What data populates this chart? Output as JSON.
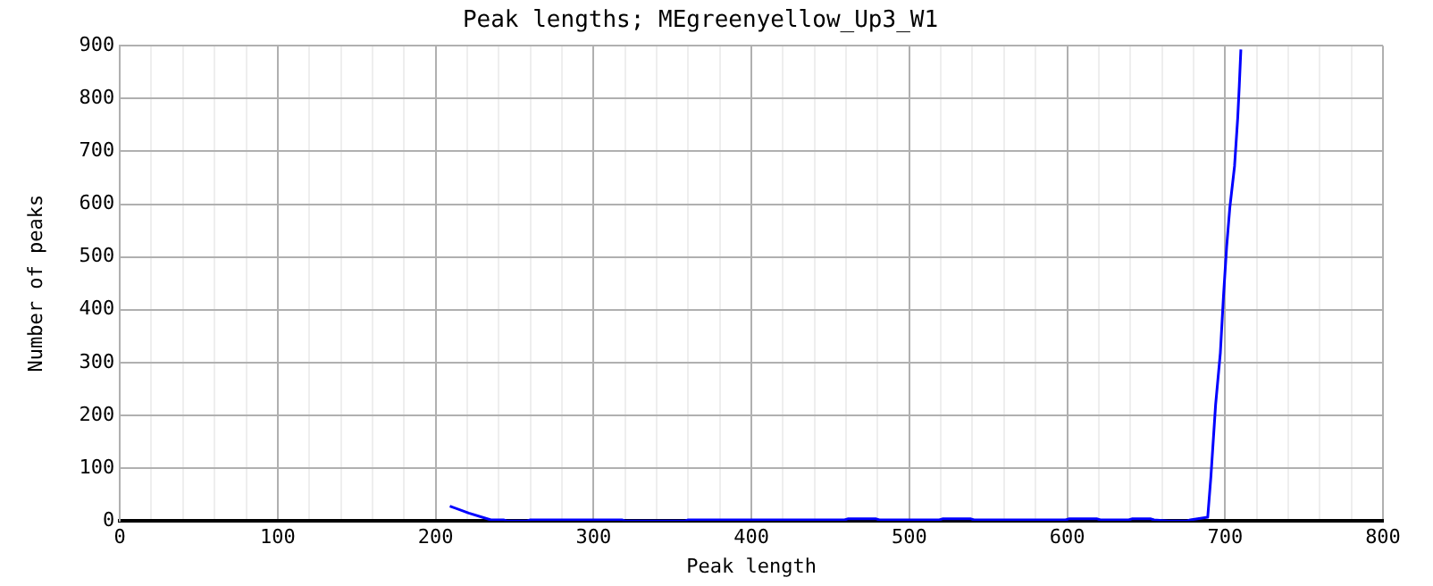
{
  "chart_data": {
    "type": "line",
    "title": "Peak lengths; MEgreenyellow_Up3_W1",
    "xlabel": "Peak length",
    "ylabel": "Number of peaks",
    "x": [
      209,
      221,
      235,
      243,
      245,
      258,
      260,
      318,
      320,
      358,
      360,
      459,
      461,
      479,
      481,
      519,
      521,
      539,
      541,
      599,
      601,
      619,
      621,
      639,
      641,
      653,
      655,
      664,
      676,
      678,
      689,
      691,
      694,
      697,
      699,
      701,
      703,
      706,
      708,
      709,
      710
    ],
    "series": [
      {
        "color": "#0000ff",
        "values": [
          28,
          15,
          2,
          2,
          0,
          0,
          2,
          2,
          0,
          0,
          2,
          2,
          4,
          4,
          2,
          2,
          4,
          4,
          2,
          2,
          4,
          4,
          2,
          2,
          4,
          4,
          2,
          0,
          0,
          2,
          7,
          83,
          220,
          318,
          426,
          520,
          593,
          672,
          763,
          824,
          893
        ]
      }
    ],
    "xlim": [
      0,
      800
    ],
    "xticks": [
      0,
      {
        "value": 20,
        "label": null
      },
      {
        "value": 40,
        "label": null
      },
      {
        "value": 60,
        "label": null
      },
      {
        "value": 80,
        "label": null
      },
      100,
      {
        "value": 120,
        "label": null
      },
      {
        "value": 140,
        "label": null
      },
      {
        "value": 160,
        "label": null
      },
      {
        "value": 180,
        "label": null
      },
      200,
      {
        "value": 220,
        "label": null
      },
      {
        "value": 240,
        "label": null
      },
      {
        "value": 260,
        "label": null
      },
      {
        "value": 280,
        "label": null
      },
      300,
      {
        "value": 320,
        "label": null
      },
      {
        "value": 340,
        "label": null
      },
      {
        "value": 360,
        "label": null
      },
      {
        "value": 380,
        "label": null
      },
      400,
      {
        "value": 420,
        "label": null
      },
      {
        "value": 440,
        "label": null
      },
      {
        "value": 460,
        "label": null
      },
      {
        "value": 480,
        "label": null
      },
      500,
      {
        "value": 520,
        "label": null
      },
      {
        "value": 540,
        "label": null
      },
      {
        "value": 560,
        "label": null
      },
      {
        "value": 580,
        "label": null
      },
      600,
      {
        "value": 620,
        "label": null
      },
      {
        "value": 640,
        "label": null
      },
      {
        "value": 660,
        "label": null
      },
      {
        "value": 680,
        "label": null
      },
      700,
      {
        "value": 720,
        "label": null
      },
      {
        "value": 740,
        "label": null
      },
      {
        "value": 760,
        "label": null
      },
      {
        "value": 780,
        "label": null
      },
      800
    ],
    "ylim": [
      0,
      900
    ],
    "yticks": [
      0,
      100,
      200,
      300,
      400,
      500,
      600,
      700,
      800,
      900
    ],
    "grid": true,
    "legend": false,
    "marker": "none",
    "line_style": "solid"
  }
}
